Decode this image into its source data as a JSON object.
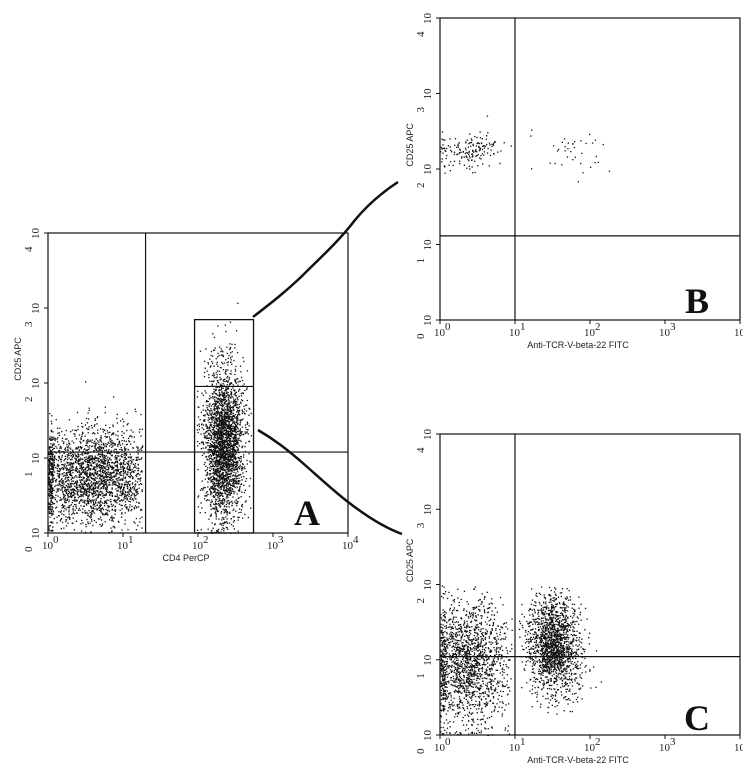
{
  "chart_data": [
    {
      "type": "scatter",
      "panel_label": "A",
      "xlabel": "CD4 PerCP",
      "ylabel": "CD25 APC",
      "x_scale": "log",
      "y_scale": "log",
      "xlim": [
        1,
        10000
      ],
      "ylim": [
        1,
        10000
      ],
      "x_ticks": [
        {
          "value": 1,
          "label": "10",
          "exp": "0"
        },
        {
          "value": 10,
          "label": "10",
          "exp": "1"
        },
        {
          "value": 100,
          "label": "10",
          "exp": "2"
        },
        {
          "value": 1000,
          "label": "10",
          "exp": "3"
        },
        {
          "value": 10000,
          "label": "10",
          "exp": "4"
        }
      ],
      "y_ticks": [
        {
          "value": 1,
          "label": "10",
          "exp": "0"
        },
        {
          "value": 10,
          "label": "10",
          "exp": "1"
        },
        {
          "value": 100,
          "label": "10",
          "exp": "2"
        },
        {
          "value": 1000,
          "label": "10",
          "exp": "3"
        },
        {
          "value": 10000,
          "label": "10",
          "exp": "4"
        }
      ],
      "quadrant_x": 20,
      "quadrant_y": 12,
      "gate": {
        "x": [
          90,
          550
        ],
        "y": [
          1,
          700
        ],
        "divider_y": 90
      },
      "populations": [
        {
          "x_center": 4,
          "x_spread": 0.45,
          "y_center": 6,
          "y_spread": 0.32,
          "count": 2600,
          "x_min": 1,
          "x_max": 18
        },
        {
          "x_center": 220,
          "x_spread": 0.13,
          "y_center": 16,
          "y_spread": 0.5,
          "count": 2600,
          "x_min": 95,
          "x_max": 520
        }
      ]
    },
    {
      "type": "scatter",
      "panel_label": "B",
      "xlabel": "Anti-TCR-V-beta-22 FITC",
      "ylabel": "CD25 APC",
      "x_scale": "log",
      "y_scale": "log",
      "xlim": [
        1,
        10000
      ],
      "ylim": [
        1,
        10000
      ],
      "x_ticks": [
        {
          "value": 1,
          "label": "10",
          "exp": "0"
        },
        {
          "value": 10,
          "label": "10",
          "exp": "1"
        },
        {
          "value": 100,
          "label": "10",
          "exp": "2"
        },
        {
          "value": 1000,
          "label": "10",
          "exp": "3"
        },
        {
          "value": 10000,
          "label": "10",
          "exp": ""
        }
      ],
      "y_ticks": [
        {
          "value": 1,
          "label": "10",
          "exp": "0"
        },
        {
          "value": 10,
          "label": "10",
          "exp": "1"
        },
        {
          "value": 100,
          "label": "10",
          "exp": "2"
        },
        {
          "value": 1000,
          "label": "10",
          "exp": "3"
        },
        {
          "value": 10000,
          "label": "10",
          "exp": "4"
        }
      ],
      "quadrant_x": 10,
      "quadrant_y": 13,
      "populations": [
        {
          "x_center": 2.2,
          "x_spread": 0.22,
          "y_center": 180,
          "y_spread": 0.12,
          "count": 170,
          "x_min": 1,
          "x_max": 9
        },
        {
          "x_center": 60,
          "x_spread": 0.3,
          "y_center": 170,
          "y_spread": 0.15,
          "count": 40,
          "x_min": 14,
          "x_max": 260
        }
      ]
    },
    {
      "type": "scatter",
      "panel_label": "C",
      "xlabel": "Anti-TCR-V-beta-22 FITC",
      "ylabel": "CD25 APC",
      "x_scale": "log",
      "y_scale": "log",
      "xlim": [
        1,
        10000
      ],
      "ylim": [
        1,
        10000
      ],
      "x_ticks": [
        {
          "value": 1,
          "label": "10",
          "exp": "0"
        },
        {
          "value": 10,
          "label": "10",
          "exp": "1"
        },
        {
          "value": 100,
          "label": "10",
          "exp": "2"
        },
        {
          "value": 1000,
          "label": "10",
          "exp": "3"
        },
        {
          "value": 10000,
          "label": "10",
          "exp": ""
        }
      ],
      "y_ticks": [
        {
          "value": 1,
          "label": "10",
          "exp": "0"
        },
        {
          "value": 10,
          "label": "10",
          "exp": "1"
        },
        {
          "value": 100,
          "label": "10",
          "exp": "2"
        },
        {
          "value": 1000,
          "label": "10",
          "exp": "3"
        },
        {
          "value": 10000,
          "label": "10",
          "exp": "4"
        }
      ],
      "quadrant_x": 10,
      "quadrant_y": 11,
      "populations": [
        {
          "x_center": 2.3,
          "x_spread": 0.28,
          "y_center": 9,
          "y_spread": 0.42,
          "count": 1700,
          "x_min": 1,
          "x_max": 9,
          "y_max": 100
        },
        {
          "x_center": 32,
          "x_spread": 0.17,
          "y_center": 16,
          "y_spread": 0.32,
          "count": 1700,
          "x_min": 11,
          "x_max": 260,
          "y_max": 100
        }
      ]
    }
  ]
}
